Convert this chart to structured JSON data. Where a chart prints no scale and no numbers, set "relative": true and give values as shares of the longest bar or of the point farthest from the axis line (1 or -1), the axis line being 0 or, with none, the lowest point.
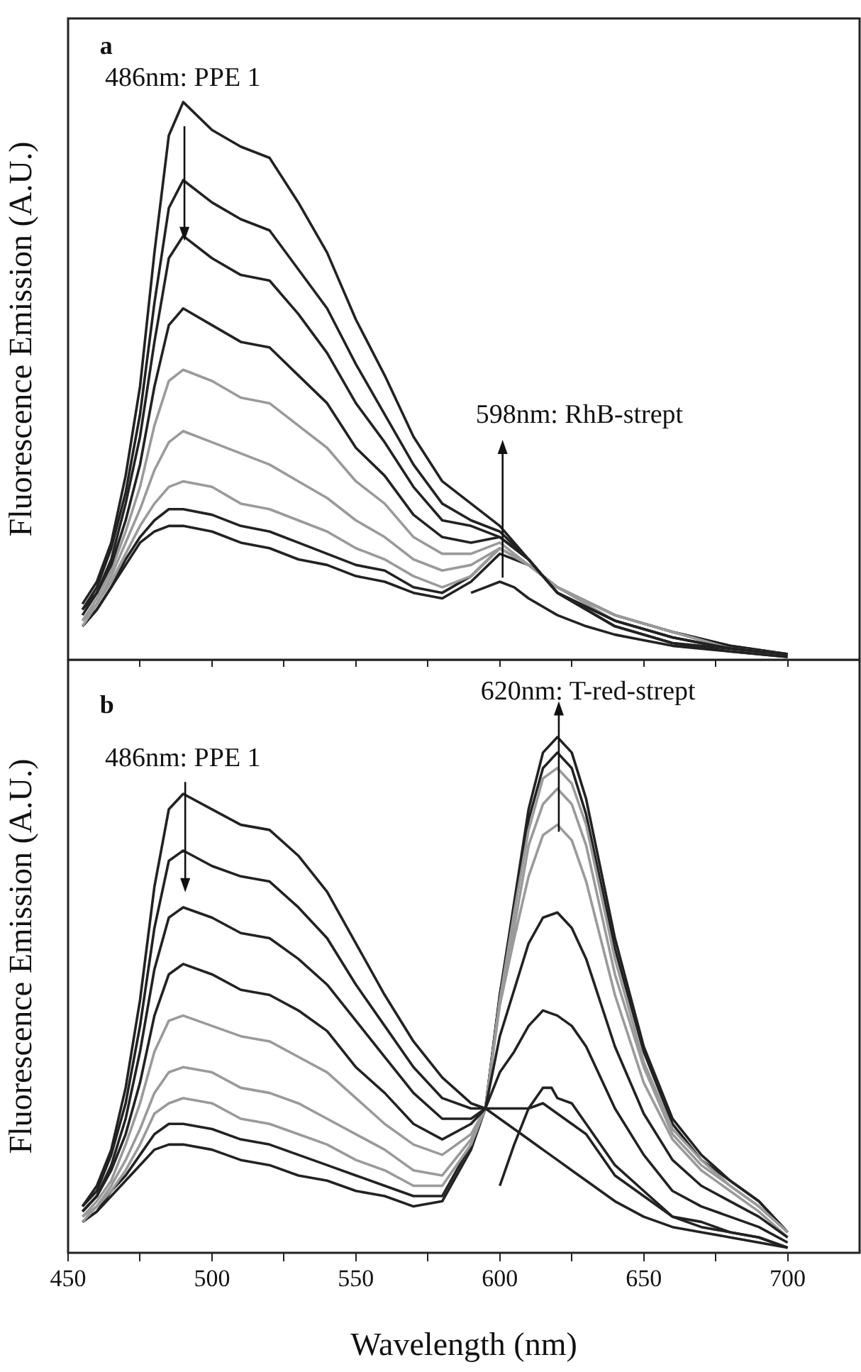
{
  "chart_data": [
    {
      "type": "line",
      "relative": true,
      "ylabel": "Fluorescence Emission (A.U.)",
      "xlim": [
        450,
        725
      ],
      "xticks": [
        450,
        {
          "value": 475,
          "label": null
        },
        500,
        {
          "value": 525,
          "label": null
        },
        550,
        {
          "value": 575,
          "label": null
        },
        600,
        {
          "value": 625,
          "label": null
        },
        650,
        {
          "value": 675,
          "label": null
        },
        700
      ],
      "tick_labels": false,
      "annotations": [
        "a",
        "486nm: PPE 1",
        "598nm: RhB-strept"
      ],
      "x": [
        455,
        460,
        465,
        470,
        475,
        480,
        485,
        490,
        500,
        510,
        520,
        530,
        540,
        550,
        560,
        570,
        580,
        590,
        600,
        610,
        620,
        640,
        660,
        680,
        700
      ],
      "series": [
        {
          "color": "#222222",
          "values": [
            0.1,
            0.14,
            0.21,
            0.33,
            0.49,
            0.73,
            0.94,
            1.0,
            0.95,
            0.92,
            0.9,
            0.82,
            0.73,
            0.61,
            0.51,
            0.4,
            0.32,
            0.28,
            0.24,
            0.18,
            0.12,
            0.06,
            0.03,
            0.015,
            0.005
          ]
        },
        {
          "color": "#222222",
          "values": [
            0.09,
            0.13,
            0.2,
            0.3,
            0.44,
            0.64,
            0.81,
            0.86,
            0.82,
            0.79,
            0.77,
            0.7,
            0.63,
            0.53,
            0.44,
            0.35,
            0.28,
            0.25,
            0.23,
            0.18,
            0.12,
            0.06,
            0.03,
            0.02,
            0.01
          ]
        },
        {
          "color": "#222222",
          "values": [
            0.09,
            0.12,
            0.18,
            0.28,
            0.4,
            0.57,
            0.72,
            0.76,
            0.72,
            0.69,
            0.68,
            0.62,
            0.55,
            0.46,
            0.39,
            0.31,
            0.25,
            0.24,
            0.22,
            0.18,
            0.12,
            0.07,
            0.04,
            0.02,
            0.01
          ]
        },
        {
          "color": "#222222",
          "values": [
            0.08,
            0.12,
            0.17,
            0.25,
            0.35,
            0.49,
            0.6,
            0.63,
            0.6,
            0.57,
            0.56,
            0.51,
            0.46,
            0.38,
            0.33,
            0.26,
            0.22,
            0.21,
            0.22,
            0.18,
            0.12,
            0.07,
            0.04,
            0.02,
            0.01
          ]
        },
        {
          "color": "#9a9a9a",
          "values": [
            0.07,
            0.11,
            0.16,
            0.23,
            0.31,
            0.42,
            0.5,
            0.52,
            0.5,
            0.47,
            0.46,
            0.42,
            0.38,
            0.32,
            0.28,
            0.22,
            0.19,
            0.19,
            0.21,
            0.17,
            0.13,
            0.07,
            0.04,
            0.02,
            0.01
          ]
        },
        {
          "color": "#9a9a9a",
          "values": [
            0.07,
            0.1,
            0.15,
            0.21,
            0.27,
            0.34,
            0.39,
            0.41,
            0.39,
            0.37,
            0.35,
            0.32,
            0.29,
            0.25,
            0.22,
            0.18,
            0.16,
            0.17,
            0.2,
            0.17,
            0.13,
            0.08,
            0.05,
            0.02,
            0.01
          ]
        },
        {
          "color": "#9a9a9a",
          "values": [
            0.06,
            0.1,
            0.14,
            0.19,
            0.24,
            0.28,
            0.31,
            0.32,
            0.31,
            0.28,
            0.27,
            0.25,
            0.23,
            0.2,
            0.18,
            0.15,
            0.13,
            0.15,
            0.2,
            0.17,
            0.13,
            0.08,
            0.05,
            0.02,
            0.01
          ]
        },
        {
          "color": "#222222",
          "values": [
            0.06,
            0.09,
            0.13,
            0.18,
            0.22,
            0.25,
            0.27,
            0.27,
            0.26,
            0.24,
            0.23,
            0.21,
            0.19,
            0.17,
            0.16,
            0.13,
            0.12,
            0.15,
            0.2,
            0.17,
            0.13,
            0.08,
            0.05,
            0.025,
            0.01
          ]
        },
        {
          "color": "#222222",
          "values": [
            0.06,
            0.09,
            0.13,
            0.17,
            0.21,
            0.23,
            0.24,
            0.24,
            0.23,
            0.21,
            0.2,
            0.18,
            0.17,
            0.15,
            0.14,
            0.12,
            0.11,
            0.14,
            0.19,
            0.17,
            0.13,
            0.08,
            0.05,
            0.025,
            0.01
          ]
        },
        {
          "color": "#222222",
          "x": [
            590,
            595,
            600,
            605,
            610,
            620,
            630,
            640,
            650,
            660,
            680,
            700
          ],
          "values": [
            0.12,
            0.13,
            0.14,
            0.13,
            0.11,
            0.08,
            0.06,
            0.045,
            0.035,
            0.025,
            0.015,
            0.005
          ]
        }
      ]
    },
    {
      "type": "line",
      "relative": true,
      "xlabel": "Wavelength (nm)",
      "ylabel": "Fluorescence Emission (A.U.)",
      "xlim": [
        450,
        725
      ],
      "xticks": [
        450,
        {
          "value": 475,
          "label": null
        },
        500,
        {
          "value": 525,
          "label": null
        },
        550,
        {
          "value": 575,
          "label": null
        },
        600,
        {
          "value": 625,
          "label": null
        },
        650,
        {
          "value": 675,
          "label": null
        },
        700
      ],
      "tick_labels": "x",
      "annotations": [
        "b",
        "486nm: PPE 1",
        "620nm: T-red-strept"
      ],
      "x": [
        455,
        460,
        465,
        470,
        475,
        480,
        485,
        490,
        500,
        510,
        520,
        530,
        540,
        550,
        560,
        570,
        580,
        590,
        595,
        600,
        605,
        610,
        615,
        620,
        625,
        630,
        640,
        650,
        660,
        670,
        680,
        690,
        700
      ],
      "series": [
        {
          "color": "#222222",
          "values": [
            0.09,
            0.13,
            0.2,
            0.32,
            0.49,
            0.71,
            0.86,
            0.89,
            0.86,
            0.83,
            0.82,
            0.77,
            0.7,
            0.6,
            0.5,
            0.41,
            0.34,
            0.29,
            0.28,
            0.26,
            0.24,
            0.22,
            0.2,
            0.18,
            0.16,
            0.14,
            0.1,
            0.07,
            0.05,
            0.04,
            0.03,
            0.02,
            0.01
          ]
        },
        {
          "color": "#222222",
          "values": [
            0.09,
            0.12,
            0.19,
            0.29,
            0.44,
            0.63,
            0.76,
            0.78,
            0.75,
            0.73,
            0.72,
            0.67,
            0.61,
            0.52,
            0.44,
            0.36,
            0.3,
            0.28,
            0.28,
            0.28,
            0.28,
            0.28,
            0.29,
            0.27,
            0.25,
            0.23,
            0.15,
            0.11,
            0.07,
            0.05,
            0.04,
            0.03,
            0.01
          ]
        },
        {
          "color": "#222222",
          "values": [
            0.08,
            0.11,
            0.17,
            0.26,
            0.39,
            0.55,
            0.65,
            0.67,
            0.65,
            0.62,
            0.61,
            0.57,
            0.52,
            0.45,
            0.38,
            0.31,
            0.26,
            0.26,
            0.28,
            0.35,
            0.39,
            0.44,
            0.47,
            0.46,
            0.44,
            0.4,
            0.28,
            0.19,
            0.12,
            0.09,
            0.07,
            0.05,
            0.02
          ]
        },
        {
          "color": "#222222",
          "values": [
            0.08,
            0.11,
            0.16,
            0.23,
            0.33,
            0.46,
            0.54,
            0.56,
            0.54,
            0.51,
            0.5,
            0.47,
            0.43,
            0.36,
            0.31,
            0.25,
            0.22,
            0.25,
            0.28,
            0.42,
            0.51,
            0.6,
            0.65,
            0.66,
            0.63,
            0.57,
            0.4,
            0.27,
            0.18,
            0.13,
            0.1,
            0.07,
            0.03
          ]
        },
        {
          "color": "#9a9a9a",
          "values": [
            0.07,
            0.1,
            0.14,
            0.21,
            0.29,
            0.39,
            0.45,
            0.46,
            0.44,
            0.42,
            0.41,
            0.38,
            0.35,
            0.3,
            0.25,
            0.21,
            0.19,
            0.23,
            0.28,
            0.48,
            0.61,
            0.73,
            0.81,
            0.83,
            0.8,
            0.72,
            0.5,
            0.33,
            0.22,
            0.16,
            0.12,
            0.08,
            0.03
          ]
        },
        {
          "color": "#9a9a9a",
          "values": [
            0.07,
            0.09,
            0.13,
            0.18,
            0.24,
            0.31,
            0.35,
            0.36,
            0.35,
            0.32,
            0.31,
            0.29,
            0.26,
            0.23,
            0.2,
            0.16,
            0.15,
            0.22,
            0.28,
            0.49,
            0.63,
            0.79,
            0.87,
            0.9,
            0.87,
            0.79,
            0.54,
            0.36,
            0.23,
            0.17,
            0.13,
            0.09,
            0.04
          ]
        },
        {
          "color": "#9a9a9a",
          "values": [
            0.06,
            0.09,
            0.12,
            0.16,
            0.21,
            0.27,
            0.29,
            0.3,
            0.29,
            0.26,
            0.25,
            0.23,
            0.21,
            0.18,
            0.16,
            0.13,
            0.13,
            0.21,
            0.28,
            0.49,
            0.66,
            0.82,
            0.92,
            0.94,
            0.91,
            0.83,
            0.57,
            0.37,
            0.24,
            0.18,
            0.13,
            0.09,
            0.04
          ]
        },
        {
          "color": "#222222",
          "values": [
            0.06,
            0.08,
            0.12,
            0.15,
            0.19,
            0.23,
            0.25,
            0.25,
            0.24,
            0.22,
            0.21,
            0.19,
            0.17,
            0.15,
            0.13,
            0.11,
            0.11,
            0.21,
            0.28,
            0.5,
            0.66,
            0.84,
            0.94,
            0.97,
            0.94,
            0.85,
            0.59,
            0.39,
            0.25,
            0.18,
            0.14,
            0.1,
            0.04
          ]
        },
        {
          "color": "#222222",
          "values": [
            0.06,
            0.08,
            0.11,
            0.14,
            0.17,
            0.2,
            0.21,
            0.21,
            0.2,
            0.18,
            0.17,
            0.15,
            0.14,
            0.12,
            0.11,
            0.09,
            0.1,
            0.2,
            0.28,
            0.5,
            0.68,
            0.86,
            0.97,
            1.0,
            0.97,
            0.88,
            0.61,
            0.4,
            0.26,
            0.19,
            0.14,
            0.1,
            0.04
          ]
        },
        {
          "color": "#222222",
          "x": [
            600,
            605,
            610,
            615,
            618,
            620,
            625,
            630,
            640,
            650,
            660,
            670,
            680,
            690,
            700
          ],
          "values": [
            0.13,
            0.21,
            0.28,
            0.32,
            0.32,
            0.3,
            0.29,
            0.25,
            0.17,
            0.12,
            0.07,
            0.06,
            0.04,
            0.03,
            0.01
          ]
        }
      ]
    }
  ]
}
